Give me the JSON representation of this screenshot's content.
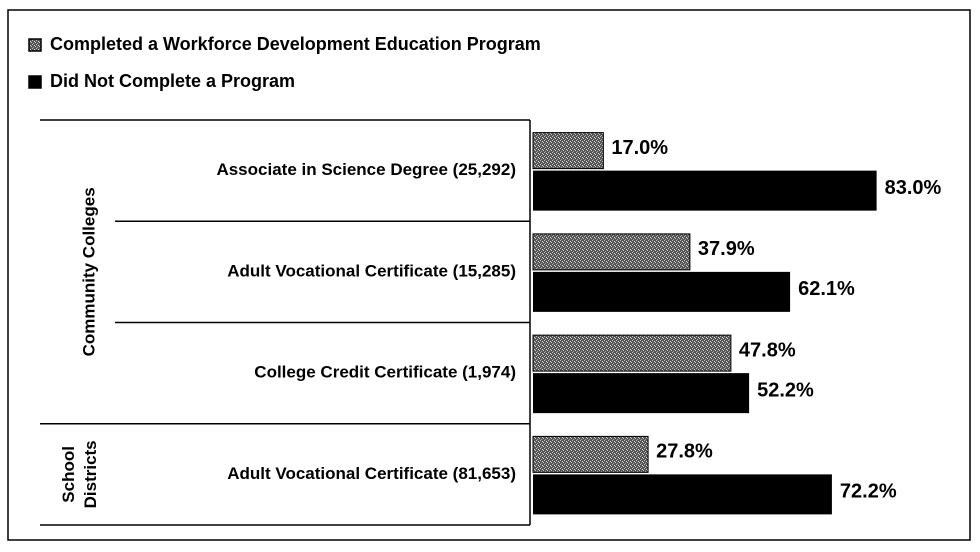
{
  "chart_data": {
    "type": "bar",
    "orientation": "horizontal",
    "categories": [
      "Associate in Science Degree (25,292)",
      "Adult Vocational Certificate (15,285)",
      "College Credit Certificate (1,974)",
      "Adult Vocational Certificate (81,653)"
    ],
    "category_groups": [
      "Community Colleges",
      "Community Colleges",
      "Community Colleges",
      "School Districts"
    ],
    "series": [
      {
        "name": "Completed a Workforce Development Education Program",
        "color": "#8c8c8c",
        "values": [
          17.0,
          37.9,
          47.8,
          27.8
        ],
        "value_labels": [
          "17.0%",
          "37.9%",
          "47.8%",
          "27.8%"
        ]
      },
      {
        "name": "Did Not Complete a Program",
        "color": "#000000",
        "values": [
          83.0,
          62.1,
          52.2,
          72.2
        ],
        "value_labels": [
          "83.0%",
          "62.1%",
          "52.2%",
          "72.2%"
        ]
      }
    ],
    "xlim": [
      0,
      100
    ]
  }
}
